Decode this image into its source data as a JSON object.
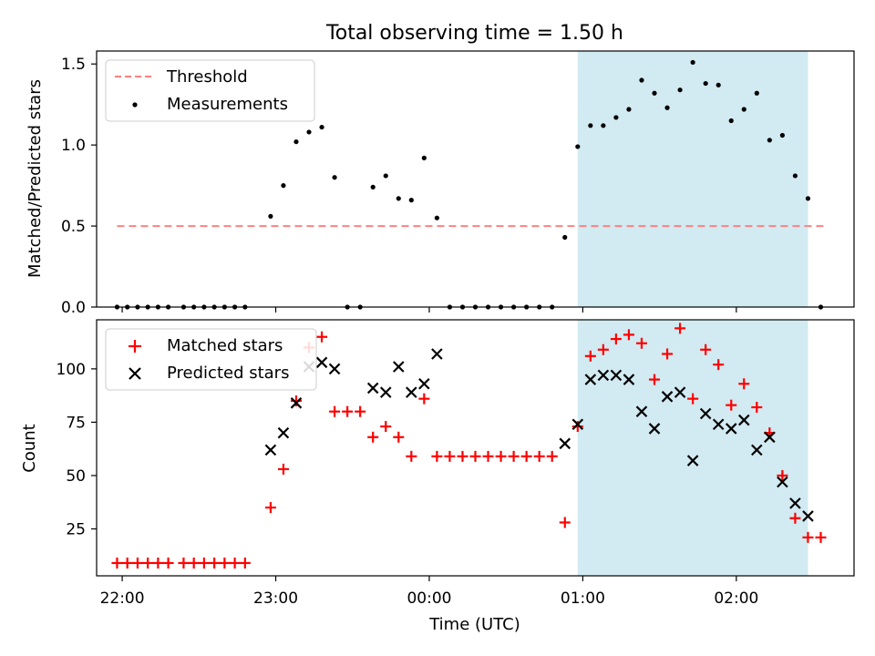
{
  "chart_data": [
    {
      "type": "scatter",
      "title": "Total observing time = 1.50 h",
      "xlabel": "",
      "ylabel": "Matched/Predicted stars",
      "xlim": [
        "21:50",
        "02:46"
      ],
      "ylim": [
        0,
        1.58
      ],
      "grid": false,
      "legend_placement": "top-left",
      "x_ticks": [
        "22:00",
        "23:00",
        "00:00",
        "01:00",
        "02:00"
      ],
      "y_ticks": [
        "0.0",
        "0.5",
        "1.0",
        "1.5"
      ],
      "shaded_interval": [
        "00:58",
        "02:28"
      ],
      "shade_color": "#add8e6",
      "series": [
        {
          "name": "Threshold",
          "style": "dashed-line",
          "color": "#ff8080",
          "points": [
            [
              "21:58",
              0.5
            ],
            [
              "02:34",
              0.5
            ]
          ]
        },
        {
          "name": "Measurements",
          "style": "dot",
          "color": "#000000",
          "points": [
            [
              "21:58",
              0
            ],
            [
              "22:02",
              0
            ],
            [
              "22:06",
              0
            ],
            [
              "22:10",
              0
            ],
            [
              "22:14",
              0
            ],
            [
              "22:18",
              0
            ],
            [
              "22:24",
              0
            ],
            [
              "22:28",
              0
            ],
            [
              "22:32",
              0
            ],
            [
              "22:36",
              0
            ],
            [
              "22:40",
              0
            ],
            [
              "22:44",
              0
            ],
            [
              "22:48",
              0
            ],
            [
              "22:58",
              0.56
            ],
            [
              "23:03",
              0.75
            ],
            [
              "23:08",
              1.02
            ],
            [
              "23:13",
              1.08
            ],
            [
              "23:18",
              1.11
            ],
            [
              "23:23",
              0.8
            ],
            [
              "23:28",
              0
            ],
            [
              "23:33",
              0
            ],
            [
              "23:38",
              0.74
            ],
            [
              "23:43",
              0.81
            ],
            [
              "23:48",
              0.67
            ],
            [
              "23:53",
              0.66
            ],
            [
              "23:58",
              0.92
            ],
            [
              "00:03",
              0.55
            ],
            [
              "00:08",
              0
            ],
            [
              "00:13",
              0
            ],
            [
              "00:18",
              0
            ],
            [
              "00:23",
              0
            ],
            [
              "00:28",
              0
            ],
            [
              "00:33",
              0
            ],
            [
              "00:38",
              0
            ],
            [
              "00:43",
              0
            ],
            [
              "00:48",
              0
            ],
            [
              "00:53",
              0.43
            ],
            [
              "00:58",
              0.99
            ],
            [
              "01:03",
              1.12
            ],
            [
              "01:08",
              1.12
            ],
            [
              "01:13",
              1.17
            ],
            [
              "01:18",
              1.22
            ],
            [
              "01:23",
              1.4
            ],
            [
              "01:28",
              1.32
            ],
            [
              "01:33",
              1.23
            ],
            [
              "01:38",
              1.34
            ],
            [
              "01:43",
              1.51
            ],
            [
              "01:48",
              1.38
            ],
            [
              "01:53",
              1.37
            ],
            [
              "01:58",
              1.15
            ],
            [
              "02:03",
              1.22
            ],
            [
              "02:08",
              1.32
            ],
            [
              "02:13",
              1.03
            ],
            [
              "02:18",
              1.06
            ],
            [
              "02:23",
              0.81
            ],
            [
              "02:28",
              0.67
            ],
            [
              "02:33",
              0
            ]
          ]
        }
      ]
    },
    {
      "type": "scatter",
      "title": "",
      "xlabel": "Time (UTC)",
      "ylabel": "Count",
      "xlim": [
        "21:50",
        "02:46"
      ],
      "ylim": [
        3,
        123
      ],
      "grid": false,
      "legend_placement": "top-left",
      "x_ticks": [
        "22:00",
        "23:00",
        "00:00",
        "01:00",
        "02:00"
      ],
      "y_ticks": [
        "25",
        "50",
        "75",
        "100"
      ],
      "shaded_interval": [
        "00:58",
        "02:28"
      ],
      "shade_color": "#add8e6",
      "series": [
        {
          "name": "Matched stars",
          "style": "plus",
          "color": "#ff0000",
          "points": [
            [
              "21:58",
              9
            ],
            [
              "22:02",
              9
            ],
            [
              "22:06",
              9
            ],
            [
              "22:10",
              9
            ],
            [
              "22:14",
              9
            ],
            [
              "22:18",
              9
            ],
            [
              "22:24",
              9
            ],
            [
              "22:28",
              9
            ],
            [
              "22:32",
              9
            ],
            [
              "22:36",
              9
            ],
            [
              "22:40",
              9
            ],
            [
              "22:44",
              9
            ],
            [
              "22:48",
              9
            ],
            [
              "22:58",
              35
            ],
            [
              "23:03",
              53
            ],
            [
              "23:08",
              85
            ],
            [
              "23:13",
              110
            ],
            [
              "23:18",
              115
            ],
            [
              "23:23",
              80
            ],
            [
              "23:28",
              80
            ],
            [
              "23:33",
              80
            ],
            [
              "23:38",
              68
            ],
            [
              "23:43",
              73
            ],
            [
              "23:48",
              68
            ],
            [
              "23:53",
              59
            ],
            [
              "23:58",
              86
            ],
            [
              "00:03",
              59
            ],
            [
              "00:08",
              59
            ],
            [
              "00:13",
              59
            ],
            [
              "00:18",
              59
            ],
            [
              "00:23",
              59
            ],
            [
              "00:28",
              59
            ],
            [
              "00:33",
              59
            ],
            [
              "00:38",
              59
            ],
            [
              "00:43",
              59
            ],
            [
              "00:48",
              59
            ],
            [
              "00:53",
              28
            ],
            [
              "00:58",
              73
            ],
            [
              "01:03",
              106
            ],
            [
              "01:08",
              109
            ],
            [
              "01:13",
              114
            ],
            [
              "01:18",
              116
            ],
            [
              "01:23",
              112
            ],
            [
              "01:28",
              95
            ],
            [
              "01:33",
              107
            ],
            [
              "01:38",
              119
            ],
            [
              "01:43",
              86
            ],
            [
              "01:48",
              109
            ],
            [
              "01:53",
              102
            ],
            [
              "01:58",
              83
            ],
            [
              "02:03",
              93
            ],
            [
              "02:08",
              82
            ],
            [
              "02:13",
              70
            ],
            [
              "02:18",
              50
            ],
            [
              "02:23",
              30
            ],
            [
              "02:28",
              21
            ],
            [
              "02:33",
              21
            ]
          ]
        },
        {
          "name": "Predicted stars",
          "style": "cross",
          "color": "#000000",
          "points": [
            [
              "22:58",
              62
            ],
            [
              "23:03",
              70
            ],
            [
              "23:08",
              84
            ],
            [
              "23:13",
              101
            ],
            [
              "23:18",
              103
            ],
            [
              "23:23",
              100
            ],
            [
              "23:38",
              91
            ],
            [
              "23:43",
              89
            ],
            [
              "23:48",
              101
            ],
            [
              "23:53",
              89
            ],
            [
              "23:58",
              93
            ],
            [
              "00:03",
              107
            ],
            [
              "00:53",
              65
            ],
            [
              "00:58",
              74
            ],
            [
              "01:03",
              95
            ],
            [
              "01:08",
              97
            ],
            [
              "01:13",
              97
            ],
            [
              "01:18",
              95
            ],
            [
              "01:23",
              80
            ],
            [
              "01:28",
              72
            ],
            [
              "01:33",
              87
            ],
            [
              "01:38",
              89
            ],
            [
              "01:43",
              57
            ],
            [
              "01:48",
              79
            ],
            [
              "01:53",
              74
            ],
            [
              "01:58",
              72
            ],
            [
              "02:03",
              76
            ],
            [
              "02:08",
              62
            ],
            [
              "02:13",
              68
            ],
            [
              "02:18",
              47
            ],
            [
              "02:23",
              37
            ],
            [
              "02:28",
              31
            ]
          ]
        }
      ]
    }
  ]
}
